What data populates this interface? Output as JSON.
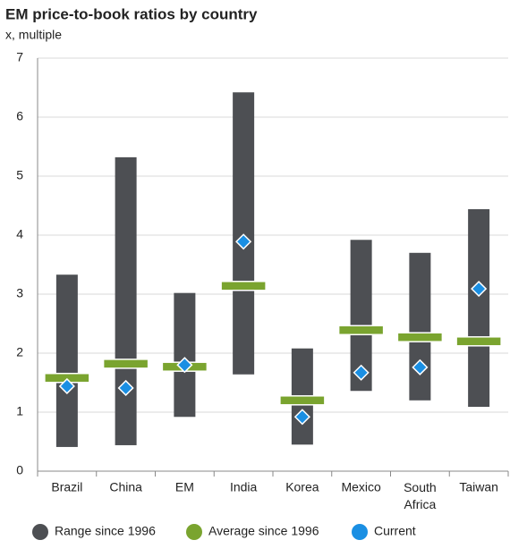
{
  "chart_data": {
    "type": "range",
    "title": "EM price-to-book ratios by country",
    "subtitle": "x, multiple",
    "categories": [
      "Brazil",
      "China",
      "EM",
      "India",
      "Korea",
      "Mexico",
      "South Africa",
      "Taiwan"
    ],
    "series": [
      {
        "name": "Range since 1996",
        "color": "#4d4f53",
        "low": [
          0.41,
          0.44,
          0.92,
          1.64,
          0.45,
          1.36,
          1.2,
          1.09
        ],
        "high": [
          3.33,
          5.32,
          3.02,
          6.42,
          2.08,
          3.92,
          3.7,
          4.44
        ]
      },
      {
        "name": "Average since 1996",
        "color": "#7aa42f",
        "values": [
          1.58,
          1.82,
          1.77,
          3.14,
          1.2,
          2.39,
          2.27,
          2.2
        ]
      },
      {
        "name": "Current",
        "color": "#1a8fe3",
        "values": [
          1.44,
          1.41,
          1.8,
          3.89,
          0.92,
          1.67,
          1.76,
          3.09
        ]
      }
    ],
    "ylim": [
      0,
      7
    ],
    "yticks": [
      0,
      1,
      2,
      3,
      4,
      5,
      6,
      7
    ],
    "grid": true,
    "legend": "bottom"
  }
}
